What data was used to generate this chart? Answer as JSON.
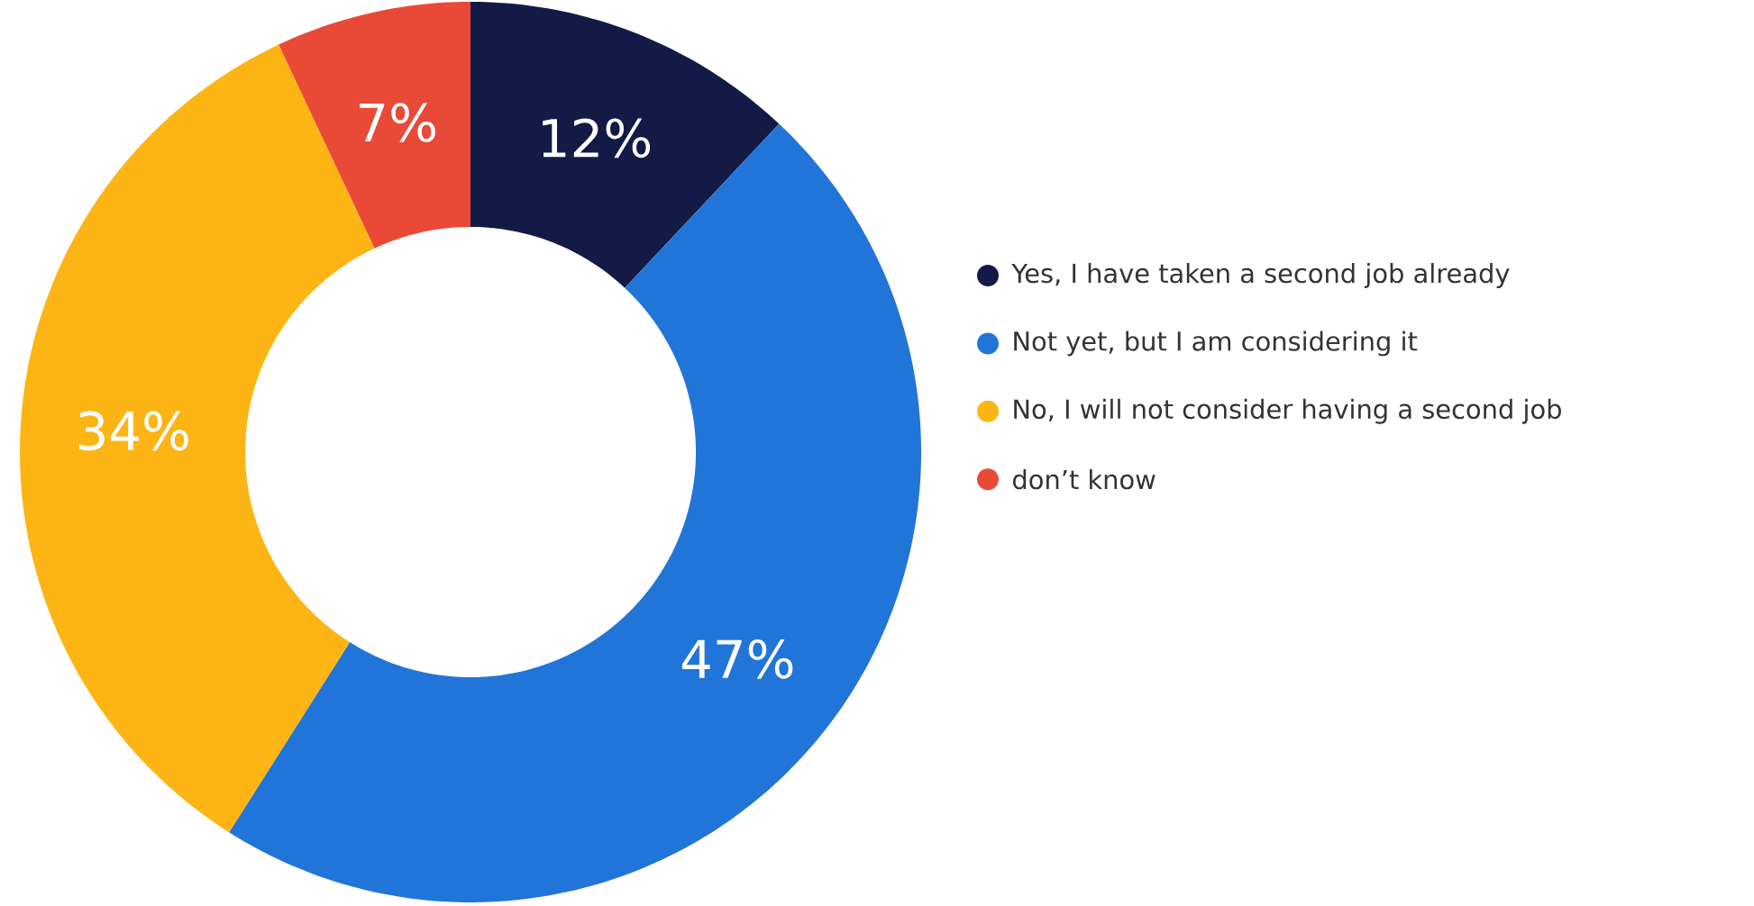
{
  "chart_data": {
    "type": "donut",
    "categories": [
      "Yes, I have taken a second job already",
      "Not yet, but I am considering it",
      "No, I will not consider having a second job",
      "don’t know"
    ],
    "values": [
      12,
      47,
      34,
      7
    ],
    "value_labels": [
      "12%",
      "47%",
      "34%",
      "7%"
    ],
    "colors": [
      "#121a45",
      "#2275d8",
      "#fdb515",
      "#e84a37"
    ],
    "legend": "right"
  }
}
